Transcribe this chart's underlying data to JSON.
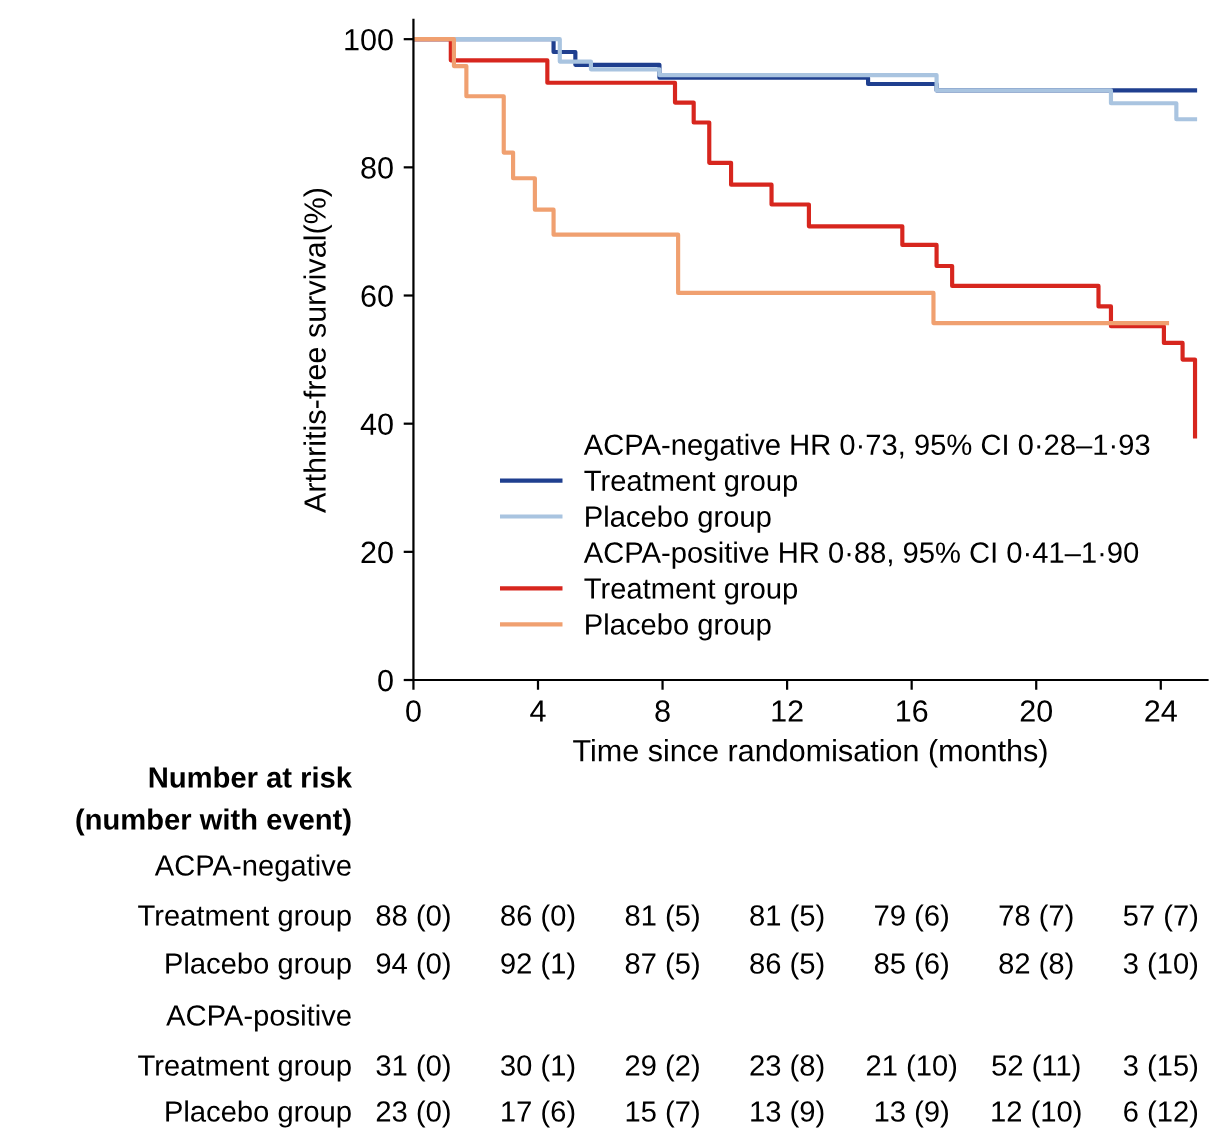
{
  "chart_data": {
    "type": "step",
    "xlabel": "Time since randomisation (months)",
    "ylabel": "Arthritis-free survival(%)",
    "xlim": [
      0,
      25.5
    ],
    "xticks": [
      0,
      4,
      8,
      12,
      16,
      20,
      24
    ],
    "ylim": [
      0,
      103
    ],
    "yticks": [
      0,
      20,
      40,
      60,
      80,
      100
    ],
    "legend": "bottom",
    "grid": false,
    "marker": "none",
    "line_style": "solid",
    "series": [
      {
        "name": "Treatment group",
        "color": "#1f3f8f",
        "x": [
          0,
          4.5,
          5.2,
          7.9,
          14.6,
          16.8,
          25.1
        ],
        "values": [
          100,
          98,
          96,
          94,
          93,
          92,
          92
        ]
      },
      {
        "name": "Placebo group",
        "color": "#a9c4e0",
        "x": [
          0,
          4.7,
          5.7,
          7.9,
          16.8,
          22.4,
          24.5,
          25.1
        ],
        "values": [
          100,
          96.5,
          95.3,
          94.4,
          92,
          90,
          87.5,
          87.5
        ]
      },
      {
        "name": "Treatment group",
        "color": "#d7261e",
        "x": [
          0,
          1.2,
          4.3,
          8.4,
          9.0,
          9.5,
          10.2,
          11.5,
          12.7,
          15.7,
          16.8,
          17.3,
          22.0,
          22.4,
          24.1,
          24.7,
          25.1,
          25.1
        ],
        "values": [
          100,
          96.7,
          93.2,
          90.1,
          87,
          80.7,
          77.3,
          74.2,
          70.8,
          67.9,
          64.6,
          61.5,
          58.3,
          55.2,
          52.6,
          50,
          38,
          38
        ]
      },
      {
        "name": "Placebo group",
        "color": "#f0a070",
        "x": [
          0,
          1.3,
          1.7,
          2.9,
          3.2,
          3.9,
          4.5,
          8.5,
          16.7,
          24.2
        ],
        "values": [
          100,
          95.8,
          91.1,
          82.3,
          78.3,
          73.4,
          69.5,
          60.4,
          55.7,
          55.7
        ]
      }
    ],
    "annotations": [
      "ACPA-negative HR 0·73, 95% CI 0·28–1·93",
      "ACPA-positive HR 0·88, 95% CI 0·41–1·90",
      "Number at risk",
      "(number with event)",
      "ACPA-negative",
      "Treatment group",
      "88 (0)",
      "86 (0)",
      "81 (5)",
      "81 (5)",
      "79 (6)",
      "78 (7)",
      "57 (7)",
      "Placebo group",
      "94 (0)",
      "92 (1)",
      "87 (5)",
      "86 (5)",
      "85 (6)",
      "82 (8)",
      "3 (10)",
      "ACPA-positive",
      "Treatment group",
      "31 (0)",
      "30 (1)",
      "29 (2)",
      "23 (8)",
      "21 (10)",
      "52 (11)",
      "3 (15)",
      "Placebo group",
      "23 (0)",
      "17 (6)",
      "15 (7)",
      "13 (9)",
      "13 (9)",
      "12 (10)",
      "6 (12)"
    ]
  }
}
